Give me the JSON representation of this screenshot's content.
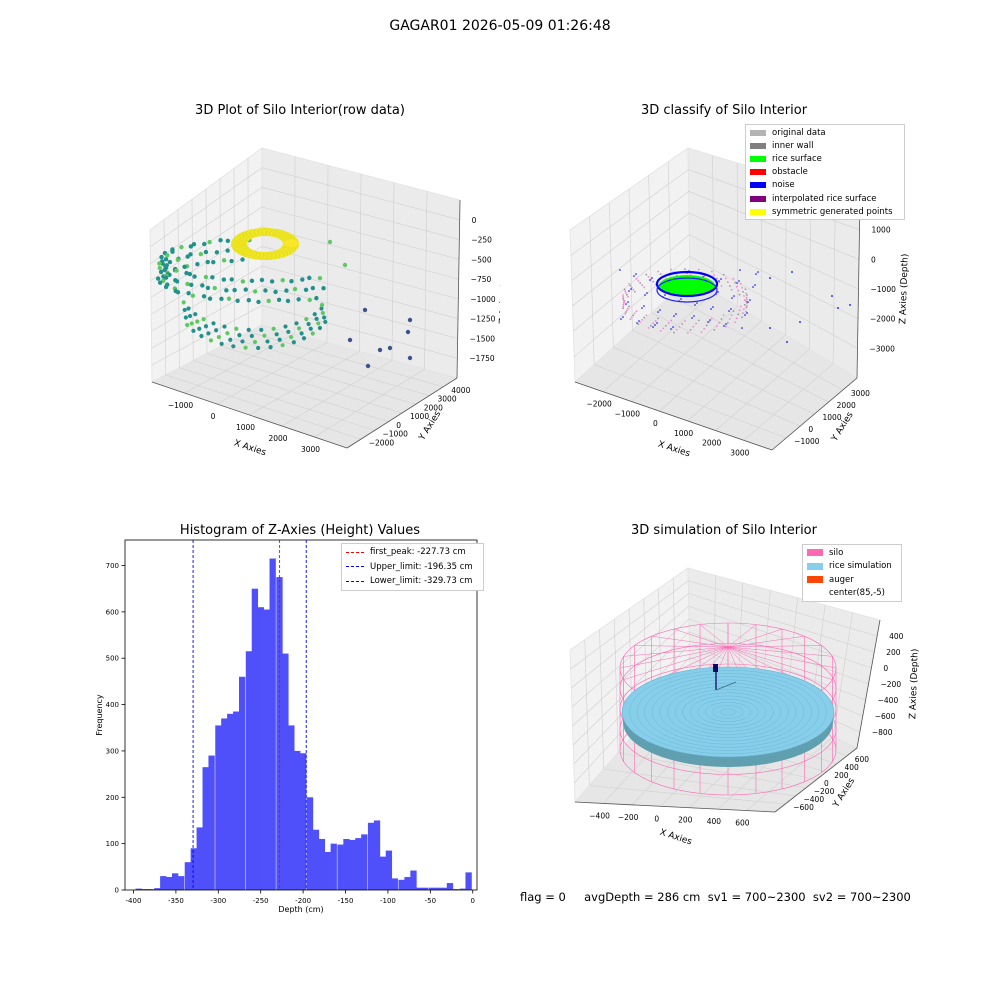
{
  "suptitle": "GAGAR01 2026-05-09 01:26:48",
  "status_line": "flag = 0     avgDepth = 286 cm  sv1 = 700~2300  sv2 = 700~2300",
  "chart_data": [
    {
      "type": "scatter3d",
      "title": "3D Plot of Silo Interior(row data)",
      "xlabel": "X Axies",
      "ylabel": "Y Axies",
      "zlabel": "Z Axies (Depth)",
      "xticks": [
        "−1000",
        "0",
        "1000",
        "2000",
        "3000"
      ],
      "yticks": [
        "−2000",
        "−1000",
        "0",
        "1000",
        "2000",
        "3000",
        "4000"
      ],
      "zticks": [
        "0",
        "−250",
        "−500",
        "−750",
        "−1000",
        "−1250",
        "−1500",
        "−1750"
      ],
      "colormap": [
        "#440154",
        "#3b528b",
        "#21918c",
        "#5ec962",
        "#fde725"
      ]
    },
    {
      "type": "scatter3d",
      "title": "3D classify of Silo Interior",
      "xlabel": "X Axies",
      "ylabel": "Y Axies",
      "zlabel": "Z Axies (Depth)",
      "xticks": [
        "−2000",
        "−1000",
        "0",
        "1000",
        "2000",
        "3000"
      ],
      "yticks": [
        "−1000",
        "0",
        "1000",
        "2000",
        "3000"
      ],
      "zticks": [
        "1000",
        "0",
        "−1000",
        "−2000",
        "−3000"
      ],
      "legend_position": "top-right",
      "legend": [
        {
          "label": "original data",
          "color": "#b3b3b3"
        },
        {
          "label": "inner wall",
          "color": "#808080"
        },
        {
          "label": "rice surface",
          "color": "#00ff00"
        },
        {
          "label": "obstacle",
          "color": "#ff0000"
        },
        {
          "label": "noise",
          "color": "#0000ff"
        },
        {
          "label": "interpolated rice surface",
          "color": "#800080"
        },
        {
          "label": "symmetric generated points",
          "color": "#ffff00"
        }
      ]
    },
    {
      "type": "bar",
      "title": "Histogram of Z-Axies (Height) Values",
      "xlabel": "Depth (cm)",
      "ylabel": "Frequency",
      "xlim": [
        -410,
        5
      ],
      "ylim": [
        0,
        755
      ],
      "bin_width": 7.2,
      "bar_color": "#5050fb",
      "xticks": [
        -400,
        -350,
        -300,
        -250,
        -200,
        -150,
        -100,
        -50,
        0
      ],
      "yticks": [
        0,
        100,
        200,
        300,
        400,
        500,
        600,
        700
      ],
      "bins": [
        [
          -394,
          3
        ],
        [
          -387,
          2
        ],
        [
          -380,
          2
        ],
        [
          -372,
          4
        ],
        [
          -365,
          30
        ],
        [
          -358,
          28
        ],
        [
          -351,
          36
        ],
        [
          -344,
          30
        ],
        [
          -336,
          60
        ],
        [
          -329,
          90
        ],
        [
          -322,
          135
        ],
        [
          -315,
          265
        ],
        [
          -308,
          290
        ],
        [
          -300,
          355
        ],
        [
          -293,
          370
        ],
        [
          -286,
          380
        ],
        [
          -279,
          385
        ],
        [
          -272,
          460
        ],
        [
          -264,
          515
        ],
        [
          -257,
          650
        ],
        [
          -250,
          610
        ],
        [
          -243,
          605
        ],
        [
          -236,
          715
        ],
        [
          -228,
          675
        ],
        [
          -221,
          510
        ],
        [
          -214,
          355
        ],
        [
          -207,
          300
        ],
        [
          -200,
          295
        ],
        [
          -192,
          200
        ],
        [
          -185,
          130
        ],
        [
          -178,
          110
        ],
        [
          -171,
          82
        ],
        [
          -164,
          100
        ],
        [
          -156,
          98
        ],
        [
          -149,
          110
        ],
        [
          -142,
          108
        ],
        [
          -135,
          112
        ],
        [
          -128,
          120
        ],
        [
          -120,
          145
        ],
        [
          -113,
          150
        ],
        [
          -106,
          72
        ],
        [
          -99,
          85
        ],
        [
          -92,
          25
        ],
        [
          -84,
          22
        ],
        [
          -77,
          28
        ],
        [
          -70,
          42
        ],
        [
          -63,
          5
        ],
        [
          -56,
          5
        ],
        [
          -48,
          5
        ],
        [
          -41,
          5
        ],
        [
          -34,
          5
        ],
        [
          -27,
          15
        ],
        [
          -20,
          2
        ],
        [
          -12,
          3
        ],
        [
          -5,
          38
        ]
      ],
      "vlines": [
        {
          "label": "first_peak: -227.73 cm",
          "x": -227.73,
          "color": "#ff0000"
        },
        {
          "label": "Upper_limit: -196.35 cm",
          "x": -196.35,
          "color": "#0000ff"
        },
        {
          "label": "Lower_limit: -329.73 cm",
          "x": -329.73,
          "color": "#0000ff"
        }
      ],
      "legend_position": "top-right"
    },
    {
      "type": "surface3d",
      "title": "3D simulation of Silo Interior",
      "xlabel": "X Axies",
      "ylabel": "Y Axies",
      "zlabel": "Z Axies (Depth)",
      "xticks": [
        "−400",
        "−200",
        "0",
        "200",
        "400",
        "600"
      ],
      "yticks": [
        "−600",
        "−400",
        "−200",
        "0",
        "200",
        "400",
        "600"
      ],
      "zticks": [
        "400",
        "200",
        "0",
        "−200",
        "−400",
        "−600",
        "−800"
      ],
      "legend_position": "top-right",
      "legend": [
        {
          "label": "silo",
          "color": "#ff69b4"
        },
        {
          "label": "rice simulation",
          "color": "#87ceeb"
        },
        {
          "label": "auger",
          "color": "#ff4500"
        },
        {
          "label": "center(85,-5)",
          "color": "#ffffff"
        }
      ]
    }
  ]
}
